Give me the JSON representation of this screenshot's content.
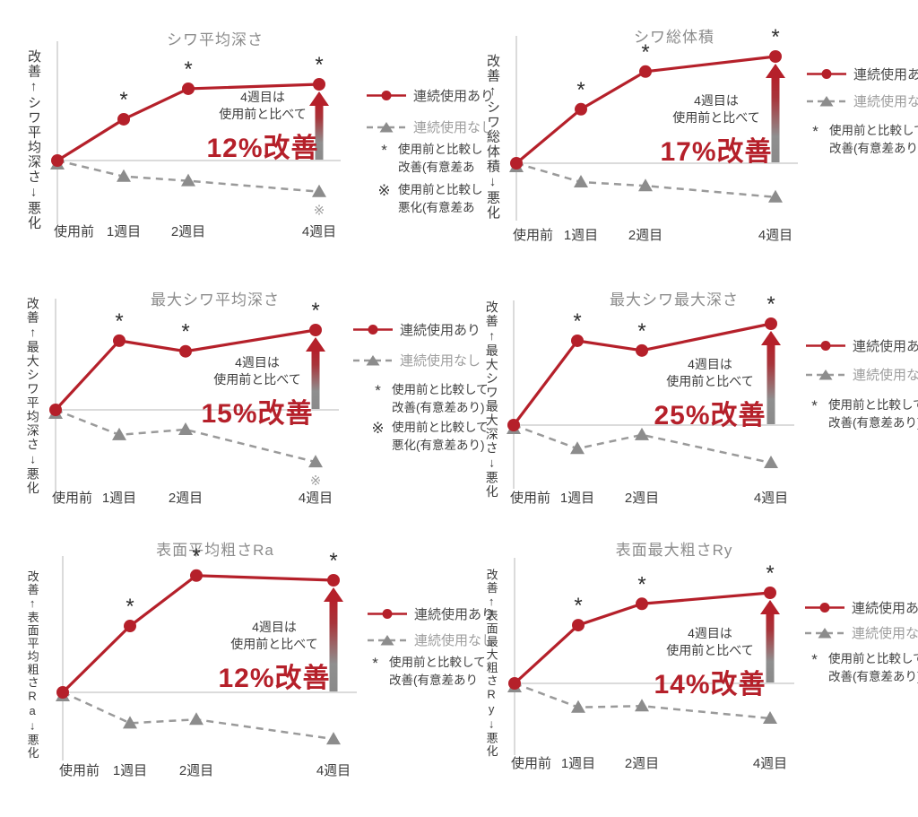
{
  "colors": {
    "series1": "#b5202a",
    "series2": "#9a9a9a",
    "triangle": "#8c8c8c",
    "arrow_top": "#b5202a",
    "arrow_bottom": "#8a8a8a",
    "title": "#8c8c8c",
    "axis_text": "#3c3c3c",
    "axis_line": "#cfcfcf",
    "asterisk": "#2e2e2e",
    "worse_mark": "#a0a0a0",
    "background": "#ffffff"
  },
  "categories": [
    "使用前",
    "1週目",
    "2週目",
    "4週目"
  ],
  "legend": {
    "series1": "連続使用あり",
    "series2": "連続使用なし"
  },
  "charts": [
    {
      "title": "シワ平均深さ",
      "y_axis": "改善↑シワ平均深さ↓悪化",
      "annotation": {
        "line1": "4週目は",
        "line2": "使用前と比べて",
        "highlight": "12%改善"
      },
      "notes": [
        {
          "mark": "*",
          "line1": "使用前と比較し",
          "line2": "改善(有意差あ"
        },
        {
          "mark": "※",
          "line1": "使用前と比較し",
          "line2": "悪化(有意差あ"
        }
      ]
    },
    {
      "title": "シワ総体積",
      "y_axis": "改善↑シワ総体積↓悪化",
      "annotation": {
        "line1": "4週目は",
        "line2": "使用前と比べて",
        "highlight": "17%改善"
      },
      "notes": [
        {
          "mark": "*",
          "line1": "使用前と比較して",
          "line2": "改善(有意差あり)"
        }
      ]
    },
    {
      "title": "最大シワ平均深さ",
      "y_axis": "改善↑最大シワ平均深さ↓悪化",
      "annotation": {
        "line1": "4週目は",
        "line2": "使用前と比べて",
        "highlight": "15%改善"
      },
      "notes": [
        {
          "mark": "*",
          "line1": "使用前と比較して",
          "line2": "改善(有意差あり)"
        },
        {
          "mark": "※",
          "line1": "使用前と比較して",
          "line2": "悪化(有意差あり)"
        }
      ]
    },
    {
      "title": "最大シワ最大深さ",
      "y_axis": "改善↑最大シワ最大深さ↓悪化",
      "annotation": {
        "line1": "4週目は",
        "line2": "使用前と比べて",
        "highlight": "25%改善"
      },
      "notes": [
        {
          "mark": "*",
          "line1": "使用前と比較して",
          "line2": "改善(有意差あり)"
        }
      ]
    },
    {
      "title": "表面平均粗さRa",
      "y_axis": "改善↑表面平均粗さRa↓悪化",
      "annotation": {
        "line1": "4週目は",
        "line2": "使用前と比べて",
        "highlight": "12%改善"
      },
      "notes": [
        {
          "mark": "*",
          "line1": "使用前と比較して",
          "line2": "改善(有意差あり"
        }
      ]
    },
    {
      "title": "表面最大粗さRy",
      "y_axis": "改善↑表面最大粗さRy↓悪化",
      "annotation": {
        "line1": "4週目は",
        "line2": "使用前と比べて",
        "highlight": "14%改善"
      },
      "notes": [
        {
          "mark": "*",
          "line1": "使用前と比較して",
          "line2": "改善(有意差あり)"
        }
      ]
    }
  ],
  "chart_data": [
    {
      "type": "line",
      "title": "シワ平均深さ",
      "categories": [
        "使用前",
        "1週目",
        "2週目",
        "4週目"
      ],
      "ylabel": "改善↑シワ平均深さ↓悪化",
      "values_unit": "% improvement vs 使用前 (estimated from plot, anchored to labeled week-4 value)",
      "improvement_pct_week4": 12,
      "annotation": "4週目は使用前と比べて12%改善",
      "grid": false,
      "legend_position": "right",
      "series": [
        {
          "name": "連続使用あり",
          "values": [
            0,
            6.5,
            11.3,
            12
          ],
          "significant_improvement": [
            false,
            true,
            true,
            true
          ]
        },
        {
          "name": "連続使用なし",
          "values": [
            0,
            -2.5,
            -3.2,
            -4.9
          ],
          "significant_worsening": [
            false,
            false,
            false,
            true
          ]
        }
      ]
    },
    {
      "type": "line",
      "title": "シワ総体積",
      "categories": [
        "使用前",
        "1週目",
        "2週目",
        "4週目"
      ],
      "ylabel": "改善↑シワ総体積↓悪化",
      "values_unit": "% improvement vs 使用前 (estimated from plot, anchored to labeled week-4 value)",
      "improvement_pct_week4": 17,
      "annotation": "4週目は使用前と比べて17%改善",
      "grid": false,
      "legend_position": "right",
      "series": [
        {
          "name": "連続使用あり",
          "values": [
            0,
            8.6,
            14.6,
            17
          ],
          "significant_improvement": [
            false,
            true,
            true,
            true
          ]
        },
        {
          "name": "連続使用なし",
          "values": [
            0,
            -3.0,
            -3.6,
            -5.4
          ],
          "significant_worsening": [
            false,
            false,
            false,
            false
          ]
        }
      ]
    },
    {
      "type": "line",
      "title": "最大シワ平均深さ",
      "categories": [
        "使用前",
        "1週目",
        "2週目",
        "4週目"
      ],
      "ylabel": "改善↑最大シワ平均深さ↓悪化",
      "values_unit": "% improvement vs 使用前 (estimated from plot, anchored to labeled week-4 value)",
      "improvement_pct_week4": 15,
      "annotation": "4週目は使用前と比べて15%改善",
      "grid": false,
      "legend_position": "right",
      "series": [
        {
          "name": "連続使用あり",
          "values": [
            0,
            13.0,
            11.0,
            15
          ],
          "significant_improvement": [
            false,
            true,
            true,
            true
          ]
        },
        {
          "name": "連続使用なし",
          "values": [
            0,
            -4.7,
            -3.7,
            -9.8
          ],
          "significant_worsening": [
            false,
            false,
            false,
            true
          ]
        }
      ]
    },
    {
      "type": "line",
      "title": "最大シワ最大深さ",
      "categories": [
        "使用前",
        "1週目",
        "2週目",
        "4週目"
      ],
      "ylabel": "改善↑最大シワ最大深さ↓悪化",
      "values_unit": "% improvement vs 使用前 (estimated from plot, anchored to labeled week-4 value)",
      "improvement_pct_week4": 25,
      "annotation": "4週目は使用前と比べて25%改善",
      "grid": false,
      "legend_position": "right",
      "series": [
        {
          "name": "連続使用あり",
          "values": [
            0,
            20.8,
            18.4,
            25
          ],
          "significant_improvement": [
            false,
            true,
            true,
            true
          ]
        },
        {
          "name": "連続使用なし",
          "values": [
            0,
            -5.8,
            -2.4,
            -9.3
          ],
          "significant_worsening": [
            false,
            false,
            false,
            false
          ]
        }
      ]
    },
    {
      "type": "line",
      "title": "表面平均粗さRa",
      "categories": [
        "使用前",
        "1週目",
        "2週目",
        "4週目"
      ],
      "ylabel": "改善↑表面平均粗さRa↓悪化",
      "values_unit": "% improvement vs 使用前 (estimated from plot, anchored to labeled week-4 value)",
      "improvement_pct_week4": 12,
      "annotation": "4週目は使用前と比べて12%改善",
      "grid": false,
      "legend_position": "right",
      "series": [
        {
          "name": "連続使用あり",
          "values": [
            0,
            7.1,
            12.5,
            12
          ],
          "significant_improvement": [
            false,
            true,
            true,
            true
          ]
        },
        {
          "name": "連続使用なし",
          "values": [
            0,
            -3.3,
            -2.9,
            -5.0
          ],
          "significant_worsening": [
            false,
            false,
            false,
            false
          ]
        }
      ]
    },
    {
      "type": "line",
      "title": "表面最大粗さRy",
      "categories": [
        "使用前",
        "1週目",
        "2週目",
        "4週目"
      ],
      "ylabel": "改善↑表面最大粗さRy↓悪化",
      "values_unit": "% improvement vs 使用前 (estimated from plot, anchored to labeled week-4 value)",
      "improvement_pct_week4": 14,
      "annotation": "4週目は使用前と比べて14%改善",
      "grid": false,
      "legend_position": "right",
      "series": [
        {
          "name": "連続使用あり",
          "values": [
            0,
            9.0,
            12.3,
            14
          ],
          "significant_improvement": [
            false,
            true,
            true,
            true
          ]
        },
        {
          "name": "連続使用なし",
          "values": [
            0,
            -3.7,
            -3.5,
            -5.4
          ],
          "significant_worsening": [
            false,
            false,
            false,
            false
          ]
        }
      ]
    }
  ]
}
